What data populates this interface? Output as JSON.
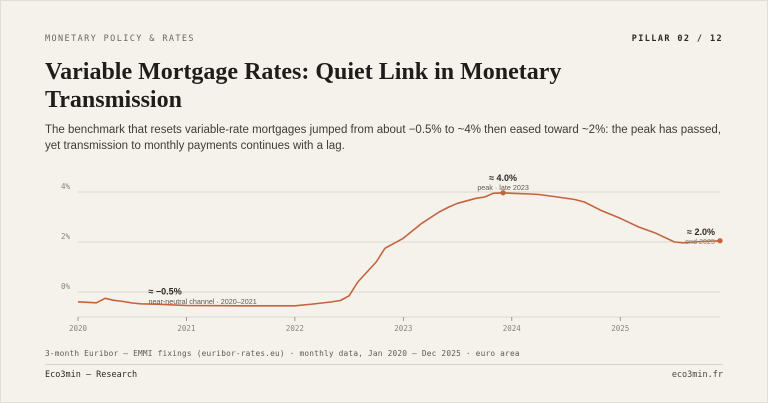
{
  "header": {
    "kicker": "MONETARY POLICY & RATES",
    "pillar": "PILLAR 02 / 12"
  },
  "title": "Variable Mortgage Rates: Quiet Link in Monetary Transmission",
  "subtitle": "The benchmark that resets variable-rate mortgages jumped from about −0.5% to ~4% then eased toward ~2%: the peak has passed, yet transmission to monthly payments continues with a lag.",
  "footer": {
    "source": "3-month Euribor — EMMI fixings (euribor-rates.eu) · monthly data, Jan 2020 – Dec 2025 · euro area",
    "brand": "Eco3min — Research",
    "site": "eco3min.fr"
  },
  "colors": {
    "line": "#c4643f",
    "grid": "#ddd6cc",
    "axis": "#8a847c"
  },
  "chart_data": {
    "type": "line",
    "x_unit": "year (decimal)",
    "ylabel": "",
    "xlabel": "",
    "xlim": [
      2020,
      2025.92
    ],
    "ylim": [
      -1,
      4.4
    ],
    "yticks": [
      0,
      2,
      4
    ],
    "ytick_labels": [
      "0%",
      "2%",
      "4%"
    ],
    "xticks": [
      2020,
      2021,
      2022,
      2023,
      2024,
      2025
    ],
    "xtick_labels": [
      "2020",
      "2021",
      "2022",
      "2023",
      "2024",
      "2025"
    ],
    "grid": true,
    "series": [
      {
        "values": [
          [
            2020.0,
            -0.39
          ],
          [
            2020.17,
            -0.43
          ],
          [
            2020.25,
            -0.25
          ],
          [
            2020.33,
            -0.33
          ],
          [
            2020.42,
            -0.38
          ],
          [
            2020.5,
            -0.44
          ],
          [
            2020.58,
            -0.47
          ],
          [
            2020.75,
            -0.49
          ],
          [
            2021.0,
            -0.54
          ],
          [
            2021.5,
            -0.55
          ],
          [
            2022.0,
            -0.55
          ],
          [
            2022.17,
            -0.48
          ],
          [
            2022.33,
            -0.4
          ],
          [
            2022.42,
            -0.34
          ],
          [
            2022.5,
            -0.15
          ],
          [
            2022.58,
            0.4
          ],
          [
            2022.75,
            1.2
          ],
          [
            2022.83,
            1.75
          ],
          [
            2023.0,
            2.15
          ],
          [
            2023.17,
            2.75
          ],
          [
            2023.33,
            3.2
          ],
          [
            2023.42,
            3.4
          ],
          [
            2023.5,
            3.55
          ],
          [
            2023.67,
            3.75
          ],
          [
            2023.75,
            3.8
          ],
          [
            2023.83,
            3.95
          ],
          [
            2023.92,
            3.97
          ],
          [
            2024.0,
            3.95
          ],
          [
            2024.17,
            3.92
          ],
          [
            2024.25,
            3.9
          ],
          [
            2024.42,
            3.8
          ],
          [
            2024.58,
            3.7
          ],
          [
            2024.67,
            3.6
          ],
          [
            2024.83,
            3.25
          ],
          [
            2025.0,
            2.95
          ],
          [
            2025.17,
            2.6
          ],
          [
            2025.33,
            2.35
          ],
          [
            2025.5,
            2.0
          ],
          [
            2025.58,
            1.97
          ],
          [
            2025.75,
            2.02
          ],
          [
            2025.92,
            2.05
          ]
        ]
      }
    ],
    "annotations": [
      {
        "label": "≈ −0.5%",
        "note": "near-neutral channel · 2020–2021",
        "x": 2020.65,
        "y": -0.5
      },
      {
        "label": "≈ 4.0%",
        "note": "peak · late 2023",
        "x": 2023.92,
        "y": 3.97
      },
      {
        "label": "≈ 2.0%",
        "note": "end 2025",
        "x": 2025.92,
        "y": 2.05
      }
    ]
  }
}
